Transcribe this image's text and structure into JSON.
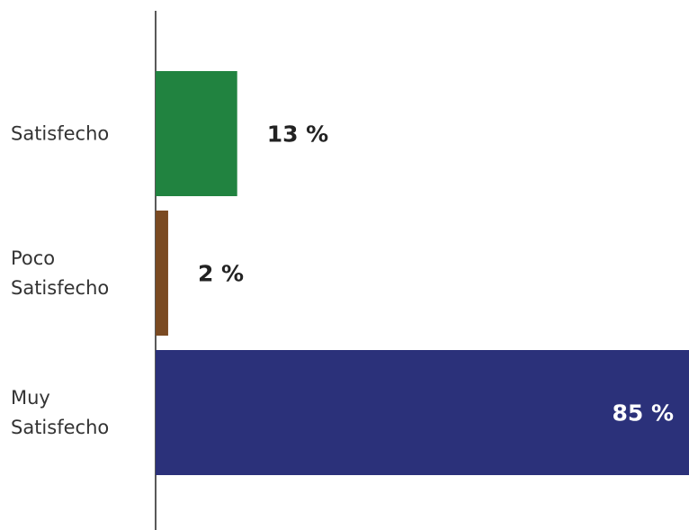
{
  "chart_data": {
    "type": "bar",
    "orientation": "horizontal",
    "categories": [
      [
        "Satisfecho"
      ],
      [
        "Poco",
        "Satisfecho"
      ],
      [
        "Muy",
        "Satisfecho"
      ]
    ],
    "values": [
      13,
      2,
      85
    ],
    "value_labels": [
      "13 %",
      "2 %",
      "85 %"
    ],
    "colors": [
      "#218340",
      "#7a4a22",
      "#2b317a"
    ],
    "value_label_colors": [
      "#222222",
      "#222222",
      "#ffffff"
    ],
    "value_label_inside": [
      false,
      false,
      true
    ],
    "xlim": [
      0,
      85
    ],
    "grid": false,
    "legend": "none",
    "title": "",
    "xlabel": "",
    "ylabel": ""
  }
}
